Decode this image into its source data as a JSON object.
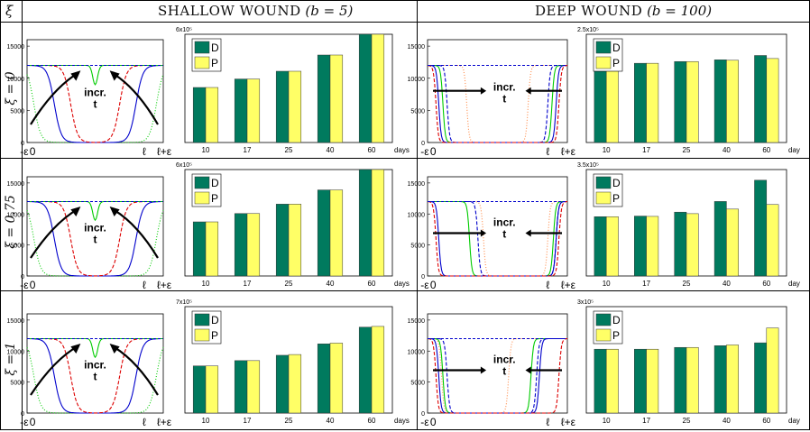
{
  "header": {
    "xi": "ξ",
    "shallow_label": "SHALLOW WOUND",
    "shallow_param": "(b = 5)",
    "deep_label": "DEEP WOUND",
    "deep_param": "(b = 100)"
  },
  "rows": [
    {
      "label": "ξ = 0"
    },
    {
      "label": "ξ = 0.75"
    },
    {
      "label": "ξ = 1"
    }
  ],
  "profile_axis": {
    "yticks": [
      "0",
      "5000",
      "10000",
      "15000"
    ],
    "xticks": [
      "-ε",
      "0",
      "ℓ",
      "ℓ+ε"
    ],
    "annotation_line1": "incr.",
    "annotation_line2": "t"
  },
  "colors": {
    "D": "#007a5e",
    "P": "#ffff66",
    "blue": "#0000cc",
    "red": "#dd0000",
    "green": "#00cc00",
    "orange": "#ff8844"
  },
  "chart_data": [
    {
      "type": "bar",
      "panel": "shallow, ξ = 0",
      "categories": [
        "10",
        "17",
        "25",
        "40",
        "60"
      ],
      "xlabel": "days",
      "scale_label": "6x10⁵",
      "ylim": [
        0,
        600000
      ],
      "series": [
        {
          "name": "D",
          "values": [
            305000,
            352000,
            395000,
            485000,
            600000
          ]
        },
        {
          "name": "P",
          "values": [
            305000,
            352000,
            395000,
            485000,
            600000
          ]
        }
      ]
    },
    {
      "type": "bar",
      "panel": "deep, ξ = 0",
      "categories": [
        "10",
        "17",
        "25",
        "40",
        "60"
      ],
      "xlabel": "day",
      "scale_label": "2.5x10⁵",
      "ylim": [
        0,
        250000
      ],
      "series": [
        {
          "name": "D",
          "values": [
            185000,
            183000,
            187000,
            191000,
            201000
          ]
        },
        {
          "name": "P",
          "values": [
            185000,
            183000,
            187000,
            190000,
            194000
          ]
        }
      ]
    },
    {
      "type": "bar",
      "panel": "shallow, ξ = 0.75",
      "categories": [
        "10",
        "17",
        "25",
        "40",
        "60"
      ],
      "xlabel": "days",
      "scale_label": "6x10⁵",
      "ylim": [
        0,
        600000
      ],
      "series": [
        {
          "name": "D",
          "values": [
            305000,
            352000,
            405000,
            485000,
            600000
          ]
        },
        {
          "name": "P",
          "values": [
            305000,
            352000,
            405000,
            485000,
            600000
          ]
        }
      ]
    },
    {
      "type": "bar",
      "panel": "deep, ξ = 0.75",
      "categories": [
        "10",
        "17",
        "25",
        "40",
        "60"
      ],
      "xlabel": "day",
      "scale_label": "3.5x10⁵",
      "ylim": [
        0,
        350000
      ],
      "series": [
        {
          "name": "D",
          "values": [
            195000,
            197000,
            210000,
            245000,
            315000
          ]
        },
        {
          "name": "P",
          "values": [
            195000,
            196000,
            205000,
            220000,
            235000
          ]
        }
      ]
    },
    {
      "type": "bar",
      "panel": "shallow, ξ = 1",
      "categories": [
        "10",
        "17",
        "25",
        "40",
        "60"
      ],
      "xlabel": "days",
      "scale_label": "7x10⁵",
      "ylim": [
        0,
        700000
      ],
      "series": [
        {
          "name": "D",
          "values": [
            310000,
            345000,
            380000,
            455000,
            565000
          ]
        },
        {
          "name": "P",
          "values": [
            310000,
            345000,
            385000,
            460000,
            570000
          ]
        }
      ]
    },
    {
      "type": "bar",
      "panel": "deep, ξ = 1",
      "categories": [
        "10",
        "17",
        "25",
        "40",
        "60"
      ],
      "xlabel": "day",
      "scale_label": "3x10⁵",
      "ylim": [
        0,
        300000
      ],
      "series": [
        {
          "name": "D",
          "values": [
            180000,
            180000,
            185000,
            190000,
            198000
          ]
        },
        {
          "name": "P",
          "values": [
            180000,
            180000,
            185000,
            192000,
            240000
          ]
        }
      ]
    }
  ]
}
